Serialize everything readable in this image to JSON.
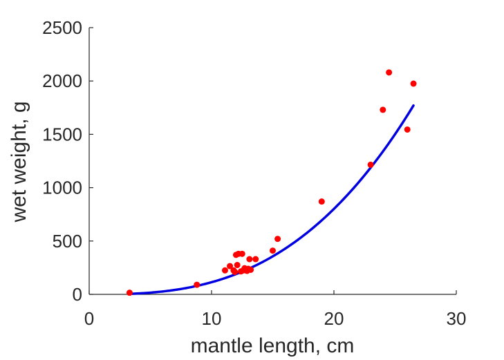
{
  "chart_data": {
    "type": "scatter",
    "title": "",
    "xlabel": "mantle length, cm",
    "ylabel": "wet weight, g",
    "xlim": [
      0,
      30
    ],
    "ylim": [
      0,
      2500
    ],
    "xticks": [
      0,
      10,
      20,
      30
    ],
    "yticks": [
      0,
      500,
      1000,
      1500,
      2000,
      2500
    ],
    "grid": false,
    "legend": "none",
    "series": [
      {
        "kind": "points",
        "color": "#ff0000",
        "points": [
          [
            3.3,
            15
          ],
          [
            8.8,
            90
          ],
          [
            11.1,
            225
          ],
          [
            11.5,
            265
          ],
          [
            11.8,
            225
          ],
          [
            11.9,
            210
          ],
          [
            12.0,
            370
          ],
          [
            12.1,
            275
          ],
          [
            12.2,
            380
          ],
          [
            12.4,
            215
          ],
          [
            12.5,
            380
          ],
          [
            12.6,
            225
          ],
          [
            12.7,
            245
          ],
          [
            12.8,
            235
          ],
          [
            12.9,
            220
          ],
          [
            13.0,
            240
          ],
          [
            13.1,
            330
          ],
          [
            13.2,
            230
          ],
          [
            13.6,
            330
          ],
          [
            15.0,
            410
          ],
          [
            15.4,
            520
          ],
          [
            19.0,
            870
          ],
          [
            23.0,
            1215
          ],
          [
            24.0,
            1730
          ],
          [
            24.5,
            2080
          ],
          [
            26.0,
            1545
          ],
          [
            26.5,
            1975
          ]
        ]
      },
      {
        "kind": "fit-line",
        "color": "#0000e0",
        "x_range": [
          3.3,
          26.5
        ],
        "y_range": [
          5,
          1770
        ]
      }
    ]
  }
}
